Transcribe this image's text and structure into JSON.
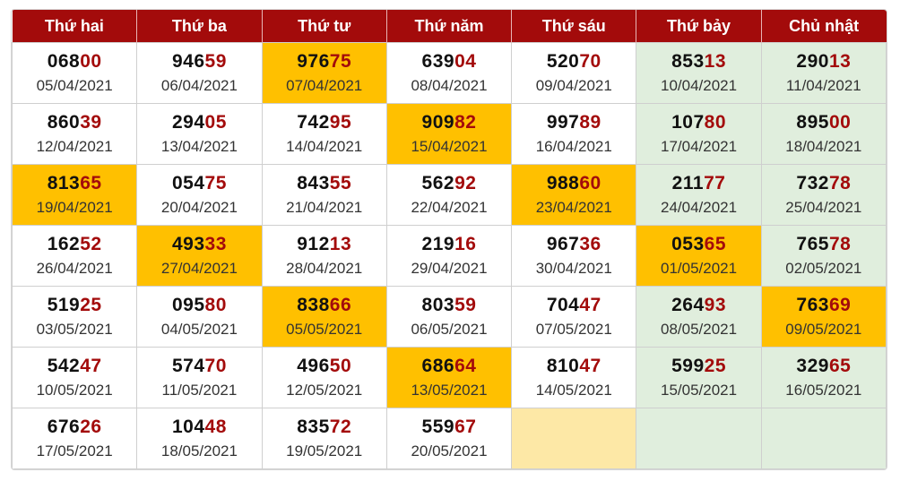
{
  "headers": [
    "Thứ hai",
    "Thứ ba",
    "Thứ tư",
    "Thứ năm",
    "Thứ sáu",
    "Thứ bảy",
    "Chủ nhật"
  ],
  "colors": {
    "header_bg": "#a30b0b",
    "highlight": "#ffc000",
    "weekend": "#e0eedd",
    "empty_highlight": "#fde8a6",
    "tail_digits": "#a30b0b"
  },
  "rows": [
    [
      {
        "head": "068",
        "tail": "00",
        "date": "05/04/2021"
      },
      {
        "head": "946",
        "tail": "59",
        "date": "06/04/2021"
      },
      {
        "head": "976",
        "tail": "75",
        "date": "07/04/2021",
        "hl": true
      },
      {
        "head": "639",
        "tail": "04",
        "date": "08/04/2021"
      },
      {
        "head": "520",
        "tail": "70",
        "date": "09/04/2021"
      },
      {
        "head": "853",
        "tail": "13",
        "date": "10/04/2021"
      },
      {
        "head": "290",
        "tail": "13",
        "date": "11/04/2021"
      }
    ],
    [
      {
        "head": "860",
        "tail": "39",
        "date": "12/04/2021"
      },
      {
        "head": "294",
        "tail": "05",
        "date": "13/04/2021"
      },
      {
        "head": "742",
        "tail": "95",
        "date": "14/04/2021"
      },
      {
        "head": "909",
        "tail": "82",
        "date": "15/04/2021",
        "hl": true
      },
      {
        "head": "997",
        "tail": "89",
        "date": "16/04/2021"
      },
      {
        "head": "107",
        "tail": "80",
        "date": "17/04/2021"
      },
      {
        "head": "895",
        "tail": "00",
        "date": "18/04/2021"
      }
    ],
    [
      {
        "head": "813",
        "tail": "65",
        "date": "19/04/2021",
        "hl": true
      },
      {
        "head": "054",
        "tail": "75",
        "date": "20/04/2021"
      },
      {
        "head": "843",
        "tail": "55",
        "date": "21/04/2021"
      },
      {
        "head": "562",
        "tail": "92",
        "date": "22/04/2021"
      },
      {
        "head": "988",
        "tail": "60",
        "date": "23/04/2021",
        "hl": true
      },
      {
        "head": "211",
        "tail": "77",
        "date": "24/04/2021"
      },
      {
        "head": "732",
        "tail": "78",
        "date": "25/04/2021"
      }
    ],
    [
      {
        "head": "162",
        "tail": "52",
        "date": "26/04/2021"
      },
      {
        "head": "493",
        "tail": "33",
        "date": "27/04/2021",
        "hl": true
      },
      {
        "head": "912",
        "tail": "13",
        "date": "28/04/2021"
      },
      {
        "head": "219",
        "tail": "16",
        "date": "29/04/2021"
      },
      {
        "head": "967",
        "tail": "36",
        "date": "30/04/2021"
      },
      {
        "head": "053",
        "tail": "65",
        "date": "01/05/2021",
        "hl": true
      },
      {
        "head": "765",
        "tail": "78",
        "date": "02/05/2021"
      }
    ],
    [
      {
        "head": "519",
        "tail": "25",
        "date": "03/05/2021"
      },
      {
        "head": "095",
        "tail": "80",
        "date": "04/05/2021"
      },
      {
        "head": "838",
        "tail": "66",
        "date": "05/05/2021",
        "hl": true
      },
      {
        "head": "803",
        "tail": "59",
        "date": "06/05/2021"
      },
      {
        "head": "704",
        "tail": "47",
        "date": "07/05/2021"
      },
      {
        "head": "264",
        "tail": "93",
        "date": "08/05/2021"
      },
      {
        "head": "763",
        "tail": "69",
        "date": "09/05/2021",
        "hl": true
      }
    ],
    [
      {
        "head": "542",
        "tail": "47",
        "date": "10/05/2021"
      },
      {
        "head": "574",
        "tail": "70",
        "date": "11/05/2021"
      },
      {
        "head": "496",
        "tail": "50",
        "date": "12/05/2021"
      },
      {
        "head": "686",
        "tail": "64",
        "date": "13/05/2021",
        "hl": true
      },
      {
        "head": "810",
        "tail": "47",
        "date": "14/05/2021"
      },
      {
        "head": "599",
        "tail": "25",
        "date": "15/05/2021"
      },
      {
        "head": "329",
        "tail": "65",
        "date": "16/05/2021"
      }
    ],
    [
      {
        "head": "676",
        "tail": "26",
        "date": "17/05/2021"
      },
      {
        "head": "104",
        "tail": "48",
        "date": "18/05/2021"
      },
      {
        "head": "835",
        "tail": "72",
        "date": "19/05/2021"
      },
      {
        "head": "559",
        "tail": "67",
        "date": "20/05/2021"
      },
      {
        "empty": true,
        "empty_hl": true
      },
      {
        "empty": true
      },
      {
        "empty": true
      }
    ]
  ]
}
